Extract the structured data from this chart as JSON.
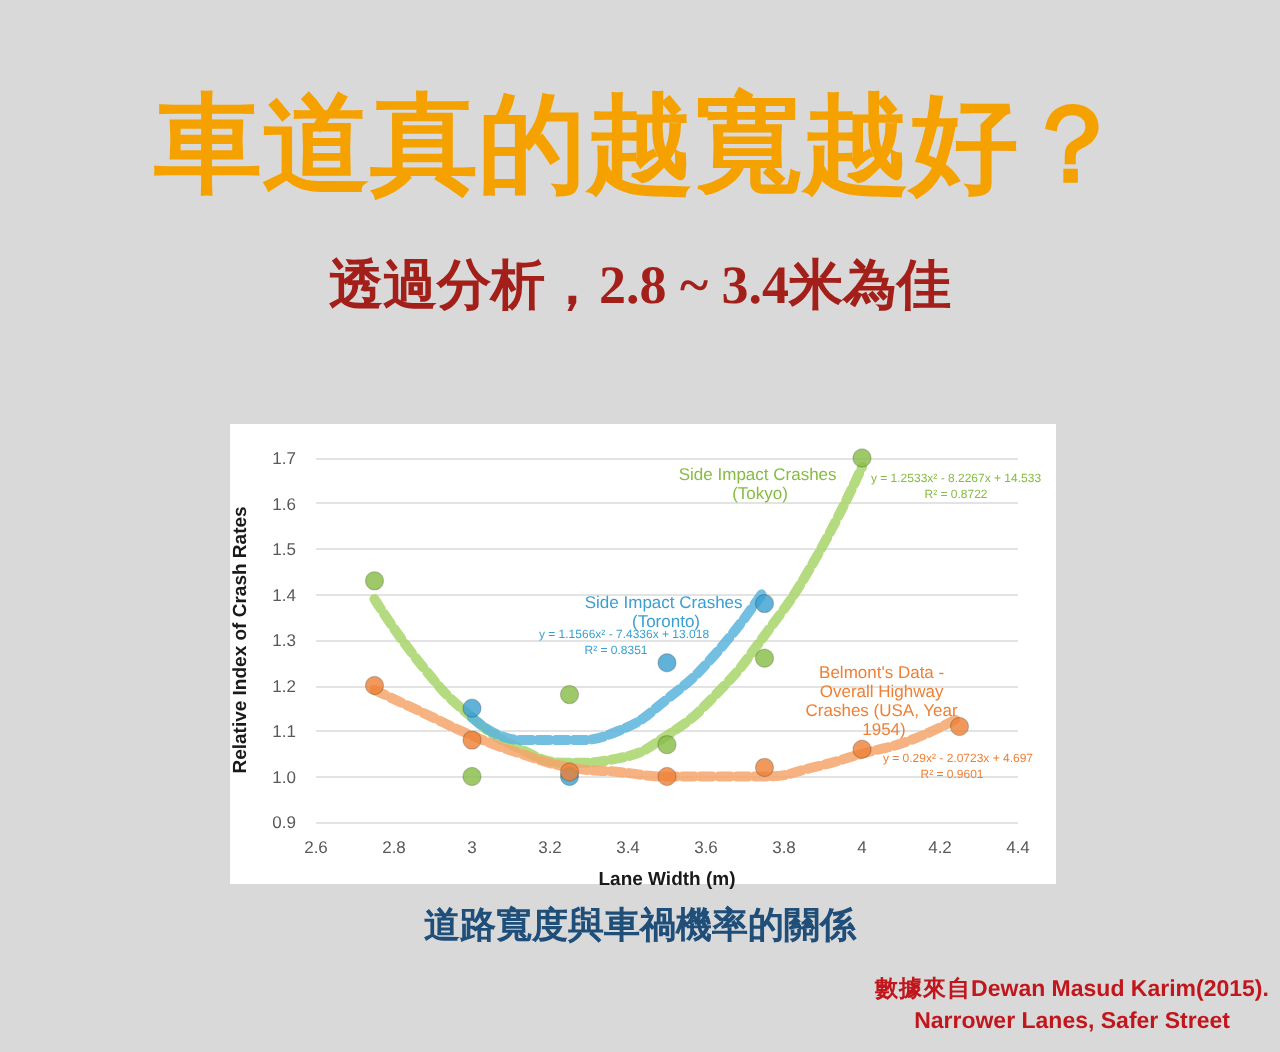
{
  "chart_data": {
    "type": "scatter",
    "title": "車道真的越寬越好？",
    "subtitle": "透過分析，2.8 ~ 3.4米為佳",
    "xlabel": "Lane Width (m)",
    "ylabel": "Relative Index of Crash Rates",
    "annotations": [
      "道路寬度與車禍機率的關係",
      "數據來自Dewan Masud Karim(2015).",
      "Narrower Lanes, Safer Street",
      "y = 1.2533x² - 8.2267x + 14.533",
      "R² = 0.8722",
      "y = 1.1566x² - 7.4336x + 13.018",
      "R² = 0.8351",
      "y = 0.29x² - 2.0723x + 4.697",
      "R² = 0.9601"
    ],
    "series": [
      {
        "name": "Side Impact Crashes (Tokyo)",
        "color": "#86bc42",
        "x": [
          2.75,
          3,
          3.25,
          3.5,
          3.75,
          4
        ],
        "values": [
          1.43,
          1.0,
          1.18,
          1.07,
          1.26,
          1.7
        ]
      },
      {
        "name": "Side Impact Crashes (Toronto)",
        "color": "#3a9fd0",
        "x": [
          3,
          3.25,
          3.5,
          3.75
        ],
        "values": [
          1.15,
          1.0,
          1.25,
          1.38
        ]
      },
      {
        "name": "Belmont's Data - Overall Highway Crashes (USA, Year 1954)",
        "color": "#ee8035",
        "x": [
          2.75,
          3,
          3.25,
          3.5,
          3.75,
          4,
          4.25
        ],
        "values": [
          1.2,
          1.08,
          1.01,
          1.0,
          1.02,
          1.06,
          1.11
        ]
      },
      {
        "type": "line",
        "color": "#a8d56b",
        "line_style": "dashed",
        "marker": "none",
        "x": [
          2.75,
          2.875,
          3,
          3.125,
          3.25,
          3.375,
          3.5,
          3.625,
          3.75,
          3.875,
          4
        ],
        "values": [
          1.39,
          1.24,
          1.13,
          1.06,
          1.03,
          1.04,
          1.09,
          1.18,
          1.31,
          1.47,
          1.68
        ]
      },
      {
        "type": "line",
        "color": "#5ab4dc",
        "line_style": "dashed",
        "marker": "none",
        "x": [
          3,
          3.125,
          3.25,
          3.375,
          3.5,
          3.625,
          3.75
        ],
        "values": [
          1.13,
          1.08,
          1.08,
          1.1,
          1.17,
          1.27,
          1.41
        ]
      },
      {
        "type": "line",
        "color": "#f4a46a",
        "line_style": "dashed",
        "marker": "none",
        "x": [
          2.75,
          2.875,
          3,
          3.125,
          3.25,
          3.375,
          3.5,
          3.625,
          3.75,
          3.875,
          4,
          4.125,
          4.25
        ],
        "values": [
          1.19,
          1.14,
          1.09,
          1.05,
          1.02,
          1.01,
          1.0,
          1.0,
          1.0,
          1.02,
          1.05,
          1.08,
          1.13
        ]
      }
    ],
    "xlim": [
      2.6,
      4.4
    ],
    "xticks": [
      2.6,
      2.8,
      3,
      3.2,
      3.4,
      3.6,
      3.8,
      4,
      4.2,
      4.4
    ],
    "ylim": [
      0.9,
      1.7
    ],
    "yticks": [
      0.9,
      {
        "value": 1,
        "label": "1.0"
      },
      1.1,
      1.2,
      1.3,
      1.4,
      1.5,
      1.6,
      1.7
    ],
    "grid": "y",
    "legend": false,
    "marker": "circle"
  }
}
